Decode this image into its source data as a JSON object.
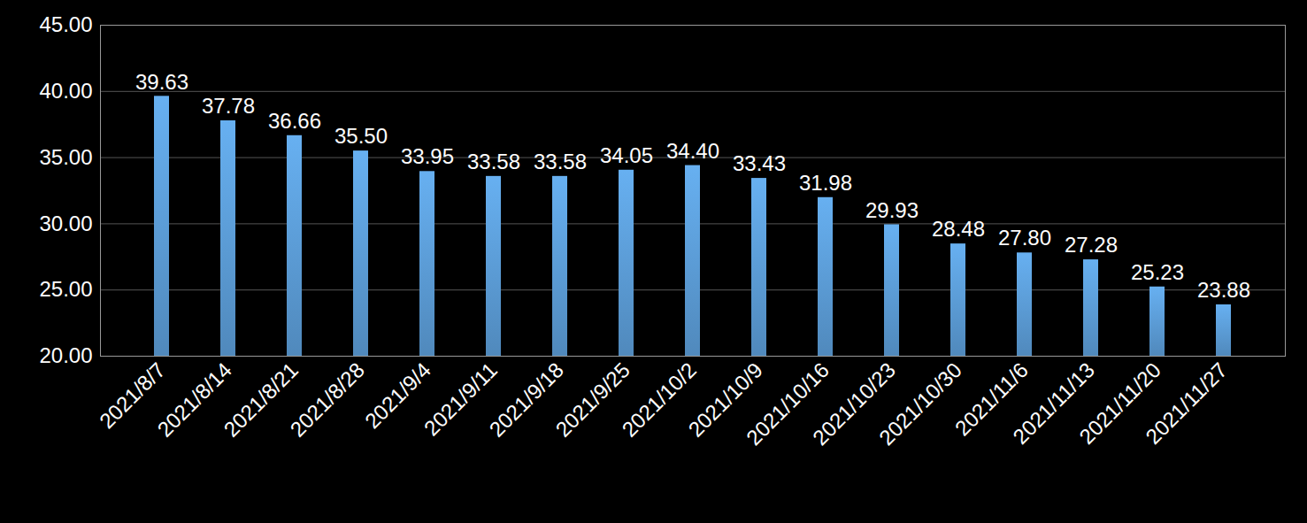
{
  "chart_data": {
    "type": "bar",
    "categories": [
      "2021/8/7",
      "2021/8/14",
      "2021/8/21",
      "2021/8/28",
      "2021/9/4",
      "2021/9/11",
      "2021/9/18",
      "2021/9/25",
      "2021/10/2",
      "2021/10/9",
      "2021/10/16",
      "2021/10/23",
      "2021/10/30",
      "2021/11/6",
      "2021/11/13",
      "2021/11/20",
      "2021/11/27"
    ],
    "values": [
      39.63,
      37.78,
      36.66,
      35.5,
      33.95,
      33.58,
      33.58,
      34.05,
      34.4,
      33.43,
      31.98,
      29.93,
      28.48,
      27.8,
      27.28,
      25.23,
      23.88
    ],
    "value_labels": [
      "39.63",
      "37.78",
      "36.66",
      "35.50",
      "33.95",
      "33.58",
      "33.58",
      "34.05",
      "34.40",
      "33.43",
      "31.98",
      "29.93",
      "28.48",
      "27.80",
      "27.28",
      "25.23",
      "23.88"
    ],
    "color": "#5b9bd5",
    "ylim": [
      20,
      45
    ],
    "yticks": [
      {
        "value": 20,
        "label": "20.00"
      },
      {
        "value": 25,
        "label": "25.00"
      },
      {
        "value": 30,
        "label": "30.00"
      },
      {
        "value": 35,
        "label": "35.00"
      },
      {
        "value": 40,
        "label": "40.00"
      },
      {
        "value": 45,
        "label": "45.00"
      }
    ],
    "grid": true,
    "data_labels": true
  }
}
